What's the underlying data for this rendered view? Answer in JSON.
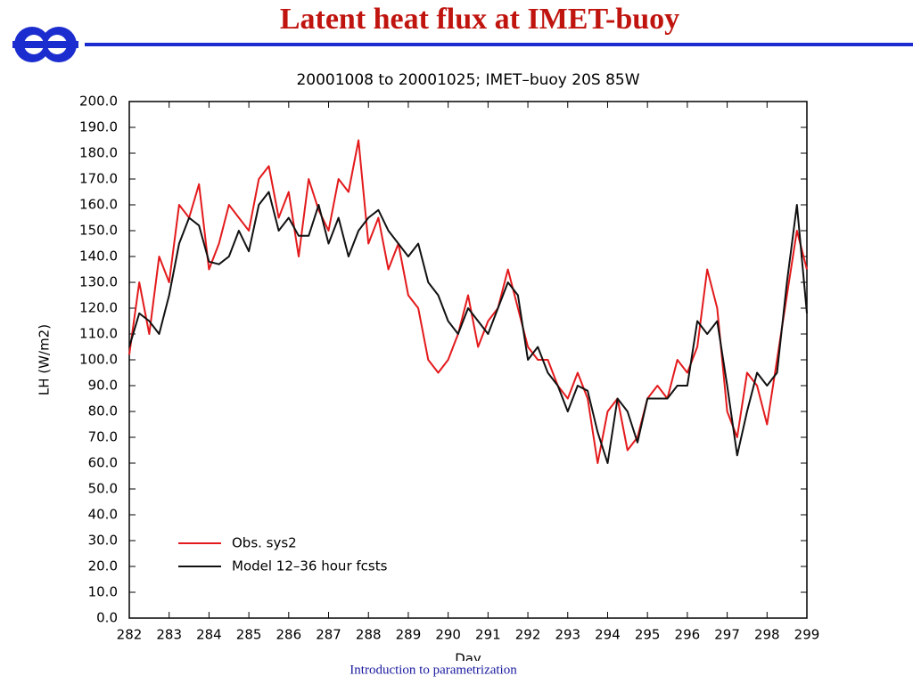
{
  "slide": {
    "title": "Latent heat flux at IMET-buoy",
    "footer": "Introduction to parametrization"
  },
  "chart_data": {
    "type": "line",
    "title": "20001008 to 20001025; IMET–buoy 20S 85W",
    "xlabel": "Day",
    "ylabel": "LH (W/m2)",
    "x": [
      282,
      282.25,
      282.5,
      282.75,
      283,
      283.25,
      283.5,
      283.75,
      284,
      284.25,
      284.5,
      284.75,
      285,
      285.25,
      285.5,
      285.75,
      286,
      286.25,
      286.5,
      286.75,
      287,
      287.25,
      287.5,
      287.75,
      288,
      288.25,
      288.5,
      288.75,
      289,
      289.25,
      289.5,
      289.75,
      290,
      290.25,
      290.5,
      290.75,
      291,
      291.25,
      291.5,
      291.75,
      292,
      292.25,
      292.5,
      292.75,
      293,
      293.25,
      293.5,
      293.75,
      294,
      294.25,
      294.5,
      294.75,
      295,
      295.25,
      295.5,
      295.75,
      296,
      296.25,
      296.5,
      296.75,
      297,
      297.25,
      297.5,
      297.75,
      298,
      298.25,
      298.5,
      298.75,
      299
    ],
    "series": [
      {
        "name": "Obs. sys2",
        "color": "#e31a1c",
        "values": [
          102,
          130,
          110,
          140,
          130,
          160,
          155,
          168,
          135,
          145,
          160,
          155,
          150,
          170,
          175,
          155,
          165,
          140,
          170,
          158,
          150,
          170,
          165,
          185,
          145,
          155,
          135,
          145,
          125,
          120,
          100,
          95,
          100,
          110,
          125,
          105,
          115,
          120,
          135,
          120,
          105,
          100,
          100,
          90,
          85,
          95,
          85,
          60,
          80,
          85,
          65,
          70,
          85,
          90,
          85,
          100,
          95,
          105,
          135,
          120,
          80,
          70,
          95,
          90,
          75,
          100,
          125,
          150,
          135
        ]
      },
      {
        "name": "Model 12–36 hour fcsts",
        "color": "#111111",
        "values": [
          105,
          118,
          115,
          110,
          125,
          145,
          155,
          152,
          138,
          137,
          140,
          150,
          142,
          160,
          165,
          150,
          155,
          148,
          148,
          160,
          145,
          155,
          140,
          150,
          155,
          158,
          150,
          145,
          140,
          145,
          130,
          125,
          115,
          110,
          120,
          115,
          110,
          120,
          130,
          125,
          100,
          105,
          95,
          90,
          80,
          90,
          88,
          72,
          60,
          85,
          80,
          68,
          85,
          85,
          85,
          90,
          90,
          115,
          110,
          115,
          90,
          63,
          80,
          95,
          90,
          95,
          130,
          160,
          118
        ]
      }
    ],
    "xlim": [
      282,
      299
    ],
    "ylim": [
      0,
      200
    ],
    "xticks": [
      282,
      283,
      284,
      285,
      286,
      287,
      288,
      289,
      290,
      291,
      292,
      293,
      294,
      295,
      296,
      297,
      298,
      299
    ],
    "yticks": [
      {
        "value": 0,
        "label": "0.0"
      },
      {
        "value": 10,
        "label": "10.0"
      },
      {
        "value": 20,
        "label": "20.0"
      },
      {
        "value": 30,
        "label": "30.0"
      },
      {
        "value": 40,
        "label": "40.0"
      },
      {
        "value": 50,
        "label": "50.0"
      },
      {
        "value": 60,
        "label": "60.0"
      },
      {
        "value": 70,
        "label": "70.0"
      },
      {
        "value": 80,
        "label": "80.0"
      },
      {
        "value": 90,
        "label": "90.0"
      },
      {
        "value": 100,
        "label": "100.0"
      },
      {
        "value": 110,
        "label": "110.0"
      },
      {
        "value": 120,
        "label": "120.0"
      },
      {
        "value": 130,
        "label": "130.0"
      },
      {
        "value": 140,
        "label": "140.0"
      },
      {
        "value": 150,
        "label": "150.0"
      },
      {
        "value": 160,
        "label": "160.0"
      },
      {
        "value": 170,
        "label": "170.0"
      },
      {
        "value": 180,
        "label": "180.0"
      },
      {
        "value": 190,
        "label": "190.0"
      },
      {
        "value": 200,
        "label": "200.0"
      }
    ],
    "legend": "lower left"
  }
}
